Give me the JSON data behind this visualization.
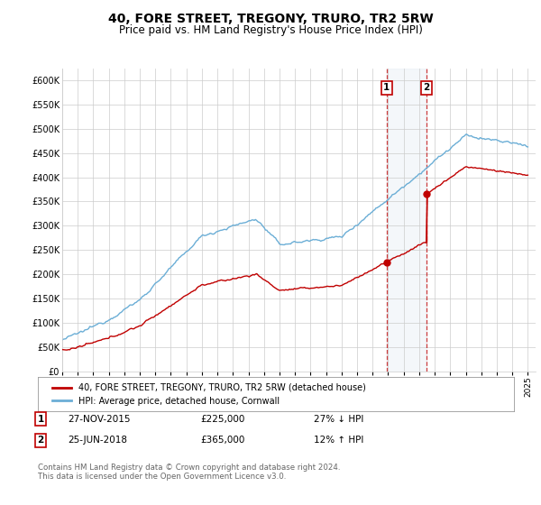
{
  "title": "40, FORE STREET, TREGONY, TRURO, TR2 5RW",
  "subtitle": "Price paid vs. HM Land Registry's House Price Index (HPI)",
  "title_fontsize": 10,
  "subtitle_fontsize": 8.5,
  "ylabel_ticks": [
    "£0",
    "£50K",
    "£100K",
    "£150K",
    "£200K",
    "£250K",
    "£300K",
    "£350K",
    "£400K",
    "£450K",
    "£500K",
    "£550K",
    "£600K"
  ],
  "ytick_values": [
    0,
    50000,
    100000,
    150000,
    200000,
    250000,
    300000,
    350000,
    400000,
    450000,
    500000,
    550000,
    600000
  ],
  "ylim": [
    0,
    625000
  ],
  "xlim_start": 1995.0,
  "xlim_end": 2025.5,
  "purchase1_date": 2015.91,
  "purchase1_price": 225000,
  "purchase1_label": "1",
  "purchase2_date": 2018.48,
  "purchase2_price": 365000,
  "purchase2_label": "2",
  "hpi_color": "#6baed6",
  "price_color": "#c00000",
  "shading_color": "#dce6f1",
  "legend_entry1": "40, FORE STREET, TREGONY, TRURO, TR2 5RW (detached house)",
  "legend_entry2": "HPI: Average price, detached house, Cornwall",
  "table_row1_num": "1",
  "table_row1_date": "27-NOV-2015",
  "table_row1_price": "£225,000",
  "table_row1_hpi": "27% ↓ HPI",
  "table_row2_num": "2",
  "table_row2_date": "25-JUN-2018",
  "table_row2_price": "£365,000",
  "table_row2_hpi": "12% ↑ HPI",
  "footnote": "Contains HM Land Registry data © Crown copyright and database right 2024.\nThis data is licensed under the Open Government Licence v3.0.",
  "background_color": "#ffffff",
  "grid_color": "#cccccc"
}
